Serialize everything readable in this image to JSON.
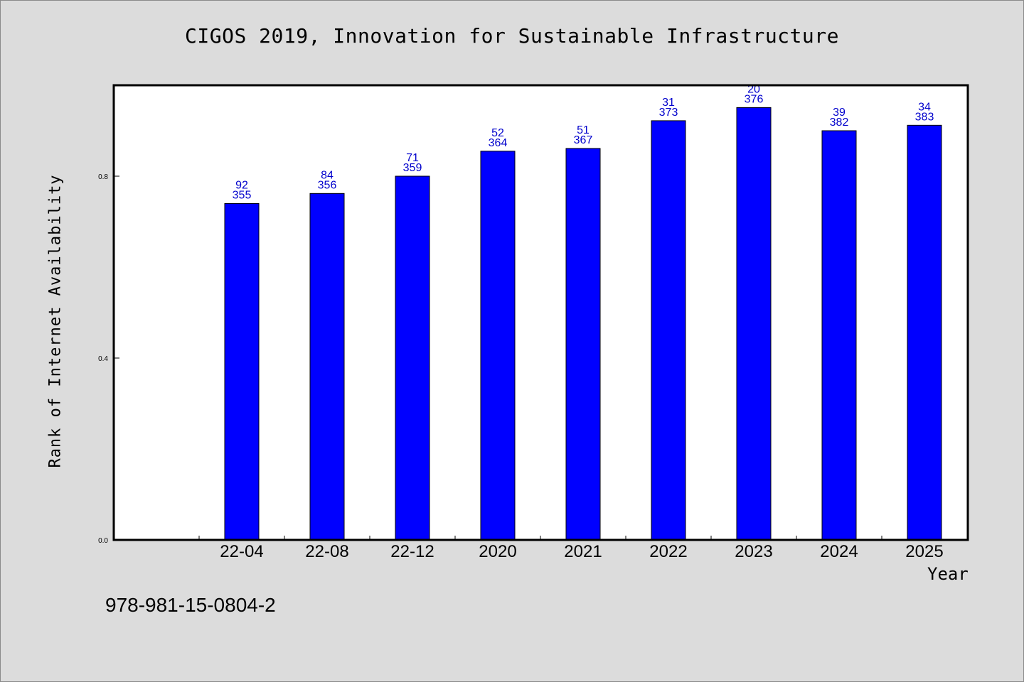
{
  "chart_data": {
    "type": "bar",
    "title": "CIGOS 2019, Innovation for Sustainable Infrastructure",
    "xlabel": "Year",
    "ylabel": "Rank of Internet Availability",
    "categories": [
      "22-04",
      "22-08",
      "22-12",
      "2020",
      "2021",
      "2022",
      "2023",
      "2024",
      "2025"
    ],
    "values": [
      0.74,
      0.762,
      0.8,
      0.855,
      0.861,
      0.922,
      0.951,
      0.9,
      0.912
    ],
    "data_labels_top": [
      "92",
      "84",
      "71",
      "52",
      "51",
      "31",
      "20",
      "39",
      "34"
    ],
    "data_labels_bottom": [
      "355",
      "356",
      "359",
      "364",
      "367",
      "373",
      "376",
      "382",
      "383"
    ],
    "yticks": [
      "0.0",
      "0.4",
      "0.8"
    ],
    "ytick_values": [
      0,
      0.4,
      0.8
    ],
    "ylim": [
      0,
      1.0
    ],
    "grid": false,
    "legend": "none",
    "bar_color": "#0000ff",
    "data_label_color": "#0000cc"
  },
  "footer_text": "978-981-15-0804-2"
}
